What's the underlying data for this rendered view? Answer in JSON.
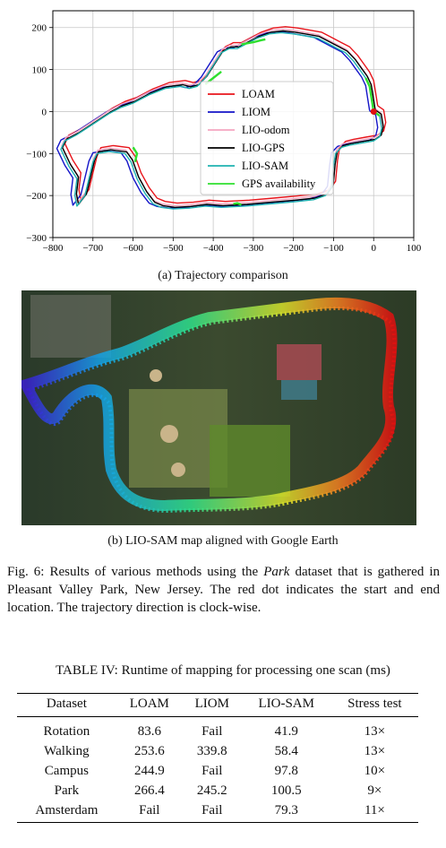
{
  "figure": {
    "caption_a": "(a) Trajectory comparison",
    "caption_b": "(b) LIO-SAM map aligned with Google Earth",
    "fig_caption_prefix": "Fig. 6: Results of various methods using the",
    "fig_caption_dataset": "Park",
    "fig_caption_suffix": "dataset that is gathered in Pleasant Valley Park, New Jersey. The red dot indicates the start and end location. The trajectory direction is clock-wise."
  },
  "chart_data": {
    "type": "line",
    "xlim": [
      -800,
      100
    ],
    "ylim": [
      -300,
      240
    ],
    "xticks": [
      "−800",
      "−700",
      "−600",
      "−500",
      "−400",
      "−300",
      "−200",
      "−100",
      "0",
      "100"
    ],
    "xtick_values": [
      -800,
      -700,
      -600,
      -500,
      -400,
      -300,
      -200,
      -100,
      0,
      100
    ],
    "yticks": [
      "200",
      "100",
      "0",
      "−100",
      "−200",
      "−300"
    ],
    "ytick_values": [
      200,
      100,
      0,
      -100,
      -200,
      -300
    ],
    "grid": true,
    "legend_position": "center",
    "start_point": [
      0,
      0
    ],
    "series": [
      {
        "name": "LOAM",
        "color": "#e8141b",
        "offset": [
          10,
          14
        ]
      },
      {
        "name": "LIOM",
        "color": "#1414c8",
        "offset": [
          -10,
          2
        ]
      },
      {
        "name": "LIO-odom",
        "color": "#f4a6c0",
        "offset": [
          2,
          8
        ]
      },
      {
        "name": "LIO-GPS",
        "color": "#000000",
        "offset": [
          4,
          4
        ]
      },
      {
        "name": "LIO-SAM",
        "color": "#1fb3b0",
        "offset": [
          0,
          0
        ]
      },
      {
        "name": "GPS availability",
        "color": "#2fe02f",
        "offset": [
          0,
          0
        ]
      }
    ],
    "base_path": [
      [
        0,
        0
      ],
      [
        15,
        -10
      ],
      [
        20,
        -40
      ],
      [
        15,
        -60
      ],
      [
        0,
        -70
      ],
      [
        -30,
        -75
      ],
      [
        -60,
        -80
      ],
      [
        -80,
        -85
      ],
      [
        -95,
        -100
      ],
      [
        -100,
        -130
      ],
      [
        -105,
        -180
      ],
      [
        -120,
        -200
      ],
      [
        -150,
        -210
      ],
      [
        -200,
        -215
      ],
      [
        -260,
        -220
      ],
      [
        -320,
        -225
      ],
      [
        -380,
        -228
      ],
      [
        -420,
        -225
      ],
      [
        -460,
        -230
      ],
      [
        -500,
        -232
      ],
      [
        -530,
        -228
      ],
      [
        -550,
        -220
      ],
      [
        -570,
        -195
      ],
      [
        -590,
        -160
      ],
      [
        -605,
        -120
      ],
      [
        -620,
        -100
      ],
      [
        -660,
        -95
      ],
      [
        -690,
        -100
      ],
      [
        -700,
        -120
      ],
      [
        -710,
        -160
      ],
      [
        -720,
        -200
      ],
      [
        -740,
        -225
      ],
      [
        -745,
        -200
      ],
      [
        -740,
        -160
      ],
      [
        -760,
        -130
      ],
      [
        -780,
        -90
      ],
      [
        -770,
        -70
      ],
      [
        -740,
        -55
      ],
      [
        -700,
        -30
      ],
      [
        -660,
        -5
      ],
      [
        -630,
        10
      ],
      [
        -600,
        20
      ],
      [
        -560,
        40
      ],
      [
        -520,
        55
      ],
      [
        -480,
        60
      ],
      [
        -460,
        55
      ],
      [
        -440,
        60
      ],
      [
        -420,
        80
      ],
      [
        -400,
        110
      ],
      [
        -380,
        140
      ],
      [
        -360,
        150
      ],
      [
        -340,
        150
      ],
      [
        -320,
        160
      ],
      [
        -290,
        175
      ],
      [
        -260,
        185
      ],
      [
        -230,
        188
      ],
      [
        -200,
        185
      ],
      [
        -170,
        180
      ],
      [
        -140,
        175
      ],
      [
        -110,
        160
      ],
      [
        -90,
        150
      ],
      [
        -70,
        140
      ],
      [
        -50,
        120
      ],
      [
        -35,
        100
      ],
      [
        -20,
        80
      ],
      [
        -10,
        60
      ],
      [
        -5,
        30
      ],
      [
        0,
        0
      ]
    ],
    "gps_segments": [
      [
        [
          -20,
          80
        ],
        [
          -10,
          60
        ],
        [
          -5,
          30
        ],
        [
          0,
          0
        ],
        [
          15,
          -10
        ]
      ],
      [
        [
          -330,
          160
        ],
        [
          -300,
          165
        ],
        [
          -280,
          170
        ],
        [
          -270,
          172
        ]
      ],
      [
        [
          -420,
          65
        ],
        [
          -400,
          80
        ],
        [
          -380,
          95
        ]
      ],
      [
        [
          -350,
          -220
        ],
        [
          -340,
          -218
        ],
        [
          -330,
          -222
        ]
      ],
      [
        [
          -600,
          -85
        ],
        [
          -590,
          -100
        ],
        [
          -595,
          -120
        ]
      ]
    ]
  },
  "table": {
    "title": "TABLE IV: Runtime of mapping for processing one scan (ms)",
    "headers": [
      "Dataset",
      "LOAM",
      "LIOM",
      "LIO-SAM",
      "Stress test"
    ],
    "rows": [
      [
        "Rotation",
        "83.6",
        "Fail",
        "41.9",
        "13×"
      ],
      [
        "Walking",
        "253.6",
        "339.8",
        "58.4",
        "13×"
      ],
      [
        "Campus",
        "244.9",
        "Fail",
        "97.8",
        "10×"
      ],
      [
        "Park",
        "266.4",
        "245.2",
        "100.5",
        "9×"
      ],
      [
        "Amsterdam",
        "Fail",
        "Fail",
        "79.3",
        "11×"
      ]
    ]
  }
}
